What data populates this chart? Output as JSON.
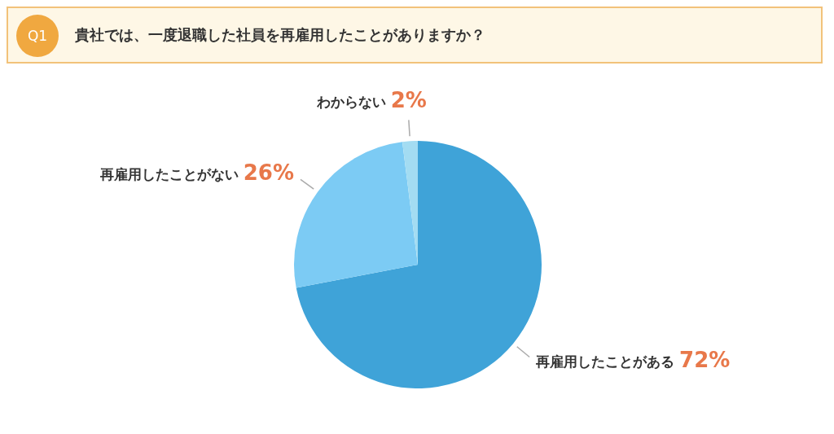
{
  "chart_data": {
    "type": "pie",
    "title": "貴社では、一度退職した社員を再雇用したことがありますか？",
    "annotations": [
      "Q1"
    ],
    "categories": [
      "再雇用したことがある",
      "再雇用したことがない",
      "わからない"
    ],
    "values": [
      72,
      26,
      2
    ],
    "colors": [
      "#3fa3d8",
      "#7ccbf4",
      "#a3dcf2"
    ],
    "value_labels": [
      "72%",
      "26%",
      "2%"
    ],
    "legend": false
  }
}
